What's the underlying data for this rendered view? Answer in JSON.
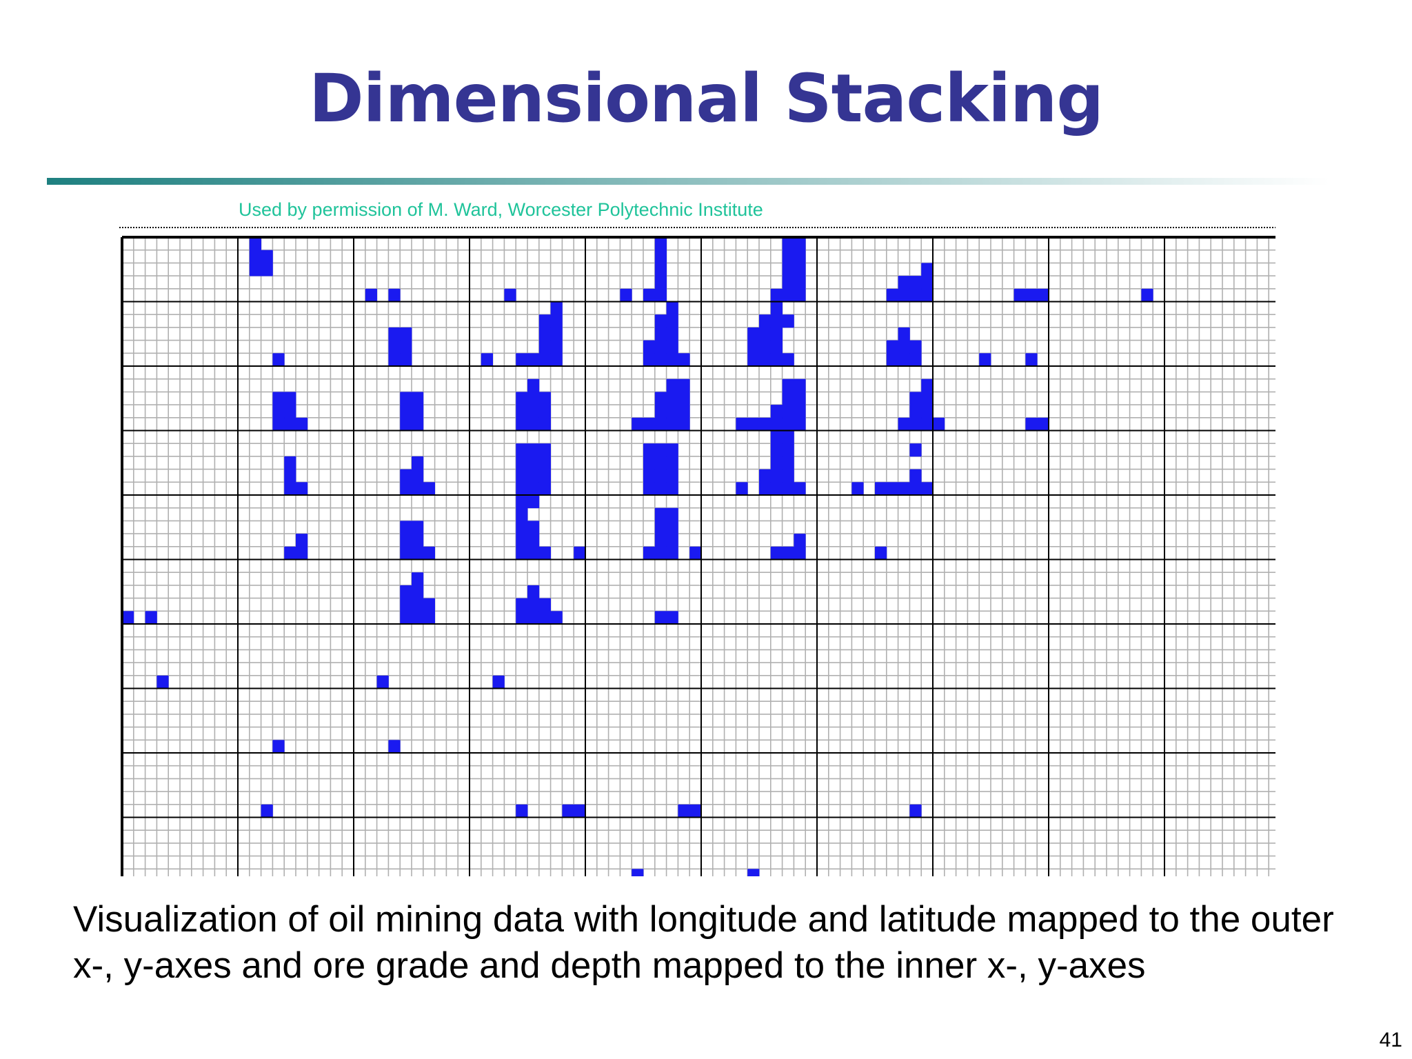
{
  "slide": {
    "title": "Dimensional Stacking",
    "credit": "Used by permission of M. Ward, Worcester Polytechnic Institute",
    "caption": "Visualization of oil mining data with longitude and latitude mapped to the outer x-, y-axes and ore grade and depth mapped to the inner x-, y-axes",
    "page_number": "41"
  },
  "colors": {
    "title": "#353593",
    "credit": "#1fc39a",
    "cell_fill": "#1a1af0",
    "grid_minor": "#b0b0b0",
    "grid_major": "#000000",
    "rule_start": "#1e8080",
    "rule_end": "#ffffff"
  },
  "chart_data": {
    "type": "heatmap",
    "description_axes": {
      "outer_x": "longitude",
      "outer_y": "latitude",
      "inner_x": "ore grade",
      "inner_y": "depth"
    },
    "outer_columns": 10,
    "outer_rows": 10,
    "inner_columns": 10,
    "inner_rows": 5,
    "filled_cells": [
      [
        11,
        0
      ],
      [
        11,
        1
      ],
      [
        11,
        2
      ],
      [
        12,
        1
      ],
      [
        12,
        2
      ],
      [
        21,
        4
      ],
      [
        23,
        4
      ],
      [
        33,
        4
      ],
      [
        43,
        4
      ],
      [
        45,
        4
      ],
      [
        46,
        0
      ],
      [
        46,
        1
      ],
      [
        46,
        2
      ],
      [
        46,
        3
      ],
      [
        46,
        4
      ],
      [
        56,
        4
      ],
      [
        57,
        0
      ],
      [
        57,
        1
      ],
      [
        57,
        2
      ],
      [
        57,
        3
      ],
      [
        57,
        4
      ],
      [
        58,
        0
      ],
      [
        58,
        1
      ],
      [
        58,
        2
      ],
      [
        58,
        3
      ],
      [
        58,
        4
      ],
      [
        66,
        4
      ],
      [
        67,
        3
      ],
      [
        67,
        4
      ],
      [
        68,
        3
      ],
      [
        68,
        4
      ],
      [
        69,
        2
      ],
      [
        69,
        3
      ],
      [
        69,
        4
      ],
      [
        77,
        4
      ],
      [
        78,
        4
      ],
      [
        79,
        4
      ],
      [
        88,
        4
      ],
      [
        101,
        4
      ],
      [
        13,
        9
      ],
      [
        23,
        7
      ],
      [
        23,
        8
      ],
      [
        23,
        9
      ],
      [
        24,
        7
      ],
      [
        24,
        8
      ],
      [
        24,
        9
      ],
      [
        31,
        9
      ],
      [
        34,
        9
      ],
      [
        35,
        9
      ],
      [
        36,
        6
      ],
      [
        36,
        7
      ],
      [
        36,
        8
      ],
      [
        36,
        9
      ],
      [
        37,
        5
      ],
      [
        37,
        6
      ],
      [
        37,
        7
      ],
      [
        37,
        8
      ],
      [
        37,
        9
      ],
      [
        45,
        8
      ],
      [
        45,
        9
      ],
      [
        46,
        6
      ],
      [
        46,
        7
      ],
      [
        46,
        8
      ],
      [
        46,
        9
      ],
      [
        47,
        5
      ],
      [
        47,
        6
      ],
      [
        47,
        7
      ],
      [
        47,
        8
      ],
      [
        47,
        9
      ],
      [
        48,
        9
      ],
      [
        54,
        7
      ],
      [
        54,
        8
      ],
      [
        54,
        9
      ],
      [
        55,
        6
      ],
      [
        55,
        7
      ],
      [
        55,
        8
      ],
      [
        55,
        9
      ],
      [
        56,
        5
      ],
      [
        56,
        6
      ],
      [
        56,
        7
      ],
      [
        56,
        8
      ],
      [
        56,
        9
      ],
      [
        57,
        6
      ],
      [
        57,
        9
      ],
      [
        66,
        8
      ],
      [
        66,
        9
      ],
      [
        67,
        7
      ],
      [
        67,
        8
      ],
      [
        67,
        9
      ],
      [
        68,
        8
      ],
      [
        68,
        9
      ],
      [
        74,
        9
      ],
      [
        78,
        9
      ],
      [
        13,
        12
      ],
      [
        13,
        13
      ],
      [
        13,
        14
      ],
      [
        14,
        12
      ],
      [
        14,
        13
      ],
      [
        14,
        14
      ],
      [
        15,
        14
      ],
      [
        24,
        12
      ],
      [
        24,
        13
      ],
      [
        24,
        14
      ],
      [
        25,
        12
      ],
      [
        25,
        13
      ],
      [
        25,
        14
      ],
      [
        34,
        12
      ],
      [
        34,
        13
      ],
      [
        34,
        14
      ],
      [
        35,
        11
      ],
      [
        35,
        12
      ],
      [
        35,
        13
      ],
      [
        35,
        14
      ],
      [
        36,
        12
      ],
      [
        36,
        13
      ],
      [
        36,
        14
      ],
      [
        44,
        14
      ],
      [
        45,
        14
      ],
      [
        46,
        12
      ],
      [
        46,
        13
      ],
      [
        46,
        14
      ],
      [
        47,
        11
      ],
      [
        47,
        12
      ],
      [
        47,
        13
      ],
      [
        47,
        14
      ],
      [
        48,
        11
      ],
      [
        48,
        12
      ],
      [
        48,
        13
      ],
      [
        48,
        14
      ],
      [
        53,
        14
      ],
      [
        54,
        14
      ],
      [
        55,
        14
      ],
      [
        56,
        13
      ],
      [
        56,
        14
      ],
      [
        57,
        11
      ],
      [
        57,
        12
      ],
      [
        57,
        13
      ],
      [
        57,
        14
      ],
      [
        58,
        11
      ],
      [
        58,
        12
      ],
      [
        58,
        13
      ],
      [
        58,
        14
      ],
      [
        67,
        14
      ],
      [
        68,
        12
      ],
      [
        68,
        13
      ],
      [
        68,
        14
      ],
      [
        69,
        11
      ],
      [
        69,
        12
      ],
      [
        69,
        13
      ],
      [
        69,
        14
      ],
      [
        70,
        14
      ],
      [
        78,
        14
      ],
      [
        79,
        14
      ],
      [
        14,
        17
      ],
      [
        14,
        18
      ],
      [
        14,
        19
      ],
      [
        15,
        19
      ],
      [
        24,
        18
      ],
      [
        24,
        19
      ],
      [
        25,
        17
      ],
      [
        25,
        18
      ],
      [
        25,
        19
      ],
      [
        26,
        19
      ],
      [
        34,
        16
      ],
      [
        34,
        17
      ],
      [
        34,
        18
      ],
      [
        34,
        19
      ],
      [
        35,
        16
      ],
      [
        35,
        17
      ],
      [
        35,
        18
      ],
      [
        35,
        19
      ],
      [
        36,
        16
      ],
      [
        36,
        17
      ],
      [
        36,
        18
      ],
      [
        36,
        19
      ],
      [
        45,
        16
      ],
      [
        45,
        17
      ],
      [
        45,
        18
      ],
      [
        45,
        19
      ],
      [
        46,
        16
      ],
      [
        46,
        17
      ],
      [
        46,
        18
      ],
      [
        46,
        19
      ],
      [
        47,
        16
      ],
      [
        47,
        17
      ],
      [
        47,
        18
      ],
      [
        47,
        19
      ],
      [
        53,
        19
      ],
      [
        55,
        18
      ],
      [
        55,
        19
      ],
      [
        56,
        15
      ],
      [
        56,
        16
      ],
      [
        56,
        17
      ],
      [
        56,
        18
      ],
      [
        56,
        19
      ],
      [
        57,
        15
      ],
      [
        57,
        16
      ],
      [
        57,
        17
      ],
      [
        57,
        18
      ],
      [
        57,
        19
      ],
      [
        58,
        19
      ],
      [
        63,
        19
      ],
      [
        65,
        19
      ],
      [
        66,
        19
      ],
      [
        67,
        19
      ],
      [
        68,
        16
      ],
      [
        68,
        18
      ],
      [
        68,
        19
      ],
      [
        69,
        19
      ],
      [
        14,
        24
      ],
      [
        15,
        23
      ],
      [
        15,
        24
      ],
      [
        24,
        22
      ],
      [
        24,
        23
      ],
      [
        24,
        24
      ],
      [
        25,
        22
      ],
      [
        25,
        23
      ],
      [
        25,
        24
      ],
      [
        26,
        24
      ],
      [
        34,
        20
      ],
      [
        34,
        21
      ],
      [
        34,
        22
      ],
      [
        34,
        23
      ],
      [
        34,
        24
      ],
      [
        35,
        20
      ],
      [
        35,
        22
      ],
      [
        35,
        23
      ],
      [
        35,
        24
      ],
      [
        36,
        24
      ],
      [
        39,
        24
      ],
      [
        45,
        24
      ],
      [
        46,
        21
      ],
      [
        46,
        22
      ],
      [
        46,
        23
      ],
      [
        46,
        24
      ],
      [
        47,
        21
      ],
      [
        47,
        22
      ],
      [
        47,
        23
      ],
      [
        47,
        24
      ],
      [
        49,
        24
      ],
      [
        56,
        24
      ],
      [
        57,
        24
      ],
      [
        58,
        23
      ],
      [
        58,
        24
      ],
      [
        65,
        24
      ],
      [
        0,
        29
      ],
      [
        2,
        29
      ],
      [
        24,
        27
      ],
      [
        24,
        28
      ],
      [
        24,
        29
      ],
      [
        25,
        26
      ],
      [
        25,
        27
      ],
      [
        25,
        28
      ],
      [
        25,
        29
      ],
      [
        26,
        28
      ],
      [
        26,
        29
      ],
      [
        34,
        28
      ],
      [
        34,
        29
      ],
      [
        35,
        27
      ],
      [
        35,
        28
      ],
      [
        35,
        29
      ],
      [
        36,
        28
      ],
      [
        36,
        29
      ],
      [
        37,
        29
      ],
      [
        46,
        29
      ],
      [
        47,
        29
      ],
      [
        3,
        34
      ],
      [
        22,
        34
      ],
      [
        32,
        34
      ],
      [
        13,
        39
      ],
      [
        23,
        39
      ],
      [
        12,
        44
      ],
      [
        34,
        44
      ],
      [
        38,
        44
      ],
      [
        39,
        44
      ],
      [
        48,
        44
      ],
      [
        49,
        44
      ],
      [
        68,
        44
      ],
      [
        44,
        49
      ],
      [
        54,
        49
      ]
    ]
  }
}
